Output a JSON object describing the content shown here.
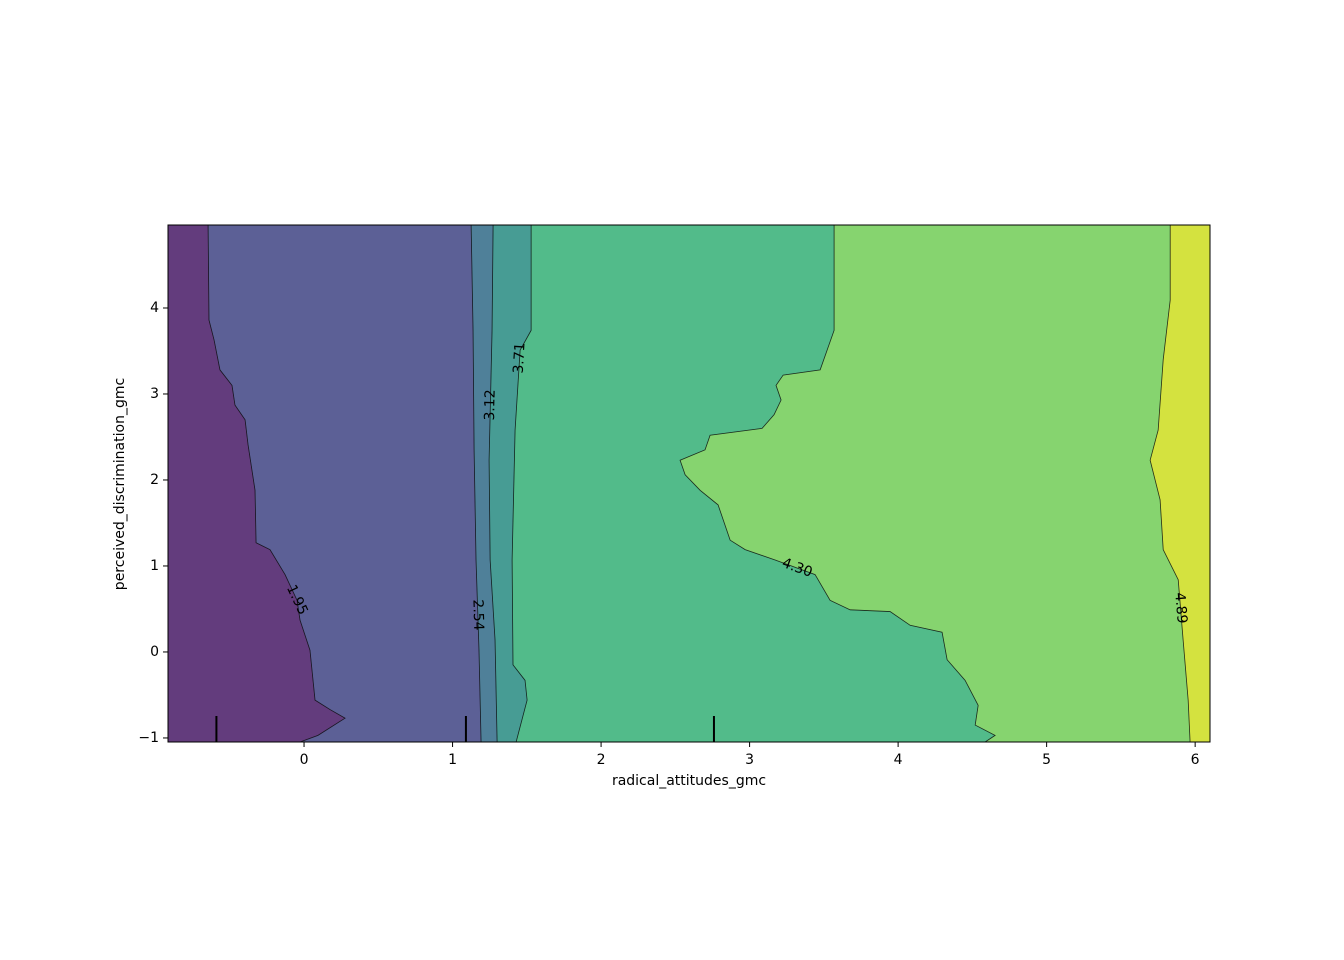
{
  "chart_data": {
    "type": "contour",
    "x_label": "radical_attitudes_gmc",
    "y_label": "perceived_discrimination_gmc",
    "xlim": [
      -0.916,
      6.1
    ],
    "ylim": [
      -1.047,
      4.965
    ],
    "xticks": [
      0,
      1,
      2,
      3,
      4,
      5,
      6
    ],
    "yticks": [
      {
        "value": -1,
        "label": "−1"
      },
      0,
      1,
      2,
      3,
      4
    ],
    "colors": [
      "#633c7d",
      "#5c6096",
      "#4f8099",
      "#479c94",
      "#52bb8a",
      "#86d46f",
      "#d4e23f"
    ],
    "contours": [
      {
        "level": 1.95,
        "label": "1.95",
        "x": [
          -0.646,
          -0.64,
          -0.606,
          -0.566,
          -0.485,
          -0.465,
          -0.397,
          -0.377,
          -0.33,
          -0.323,
          -0.229,
          -0.128,
          -0.047,
          -0.027,
          0.04,
          0.074,
          0.175,
          0.276,
          0.094,
          -0.027
        ],
        "y": [
          4.965,
          3.86,
          3.63,
          3.28,
          3.1,
          2.87,
          2.7,
          2.41,
          1.88,
          1.27,
          1.19,
          0.9,
          0.6,
          0.37,
          0.02,
          -0.56,
          -0.67,
          -0.77,
          -0.97,
          -1.047
        ]
      },
      {
        "level": 2.54,
        "label": "2.54",
        "x": [
          1.125,
          1.138,
          1.145,
          1.158,
          1.178,
          1.192
        ],
        "y": [
          4.965,
          3.74,
          2.35,
          1.07,
          0.02,
          -1.047
        ]
      },
      {
        "level": 3.12,
        "label": "3.12",
        "x": [
          1.273,
          1.266,
          1.246,
          1.253,
          1.286,
          1.3
        ],
        "y": [
          4.965,
          3.74,
          2.23,
          1.07,
          0.14,
          -1.047
        ]
      },
      {
        "level": 3.71,
        "label": "3.71",
        "x": [
          1.529,
          1.529,
          1.455,
          1.421,
          1.401,
          1.407,
          1.488,
          1.502,
          1.428
        ],
        "y": [
          4.965,
          3.74,
          3.51,
          2.58,
          1.07,
          -0.15,
          -0.33,
          -0.56,
          -1.047
        ]
      },
      {
        "level": 4.3,
        "label": "4.30",
        "x": [
          3.569,
          3.569,
          3.522,
          3.475,
          3.226,
          3.178,
          3.212,
          3.165,
          3.084,
          2.734,
          2.7,
          2.532,
          2.566,
          2.667,
          2.788,
          2.869,
          2.97,
          3.172,
          3.441,
          3.542,
          3.677,
          3.946,
          4.081,
          4.296,
          4.33,
          4.451,
          4.539,
          4.519,
          4.653,
          4.586
        ],
        "y": [
          4.965,
          3.74,
          3.51,
          3.28,
          3.22,
          3.1,
          2.93,
          2.76,
          2.6,
          2.52,
          2.35,
          2.23,
          2.06,
          1.88,
          1.71,
          1.3,
          1.19,
          1.07,
          0.9,
          0.6,
          0.49,
          0.47,
          0.31,
          0.23,
          -0.09,
          -0.33,
          -0.62,
          -0.85,
          -0.97,
          -1.047
        ]
      },
      {
        "level": 4.89,
        "label": "4.89",
        "x": [
          5.832,
          5.832,
          5.785,
          5.751,
          5.697,
          5.764,
          5.785,
          5.886,
          5.919,
          5.953,
          5.966
        ],
        "y": [
          4.965,
          4.09,
          3.4,
          2.58,
          2.23,
          1.77,
          1.19,
          0.84,
          0.14,
          -0.56,
          -1.047
        ]
      }
    ],
    "rug": [
      -0.59,
      1.09,
      2.76
    ]
  }
}
